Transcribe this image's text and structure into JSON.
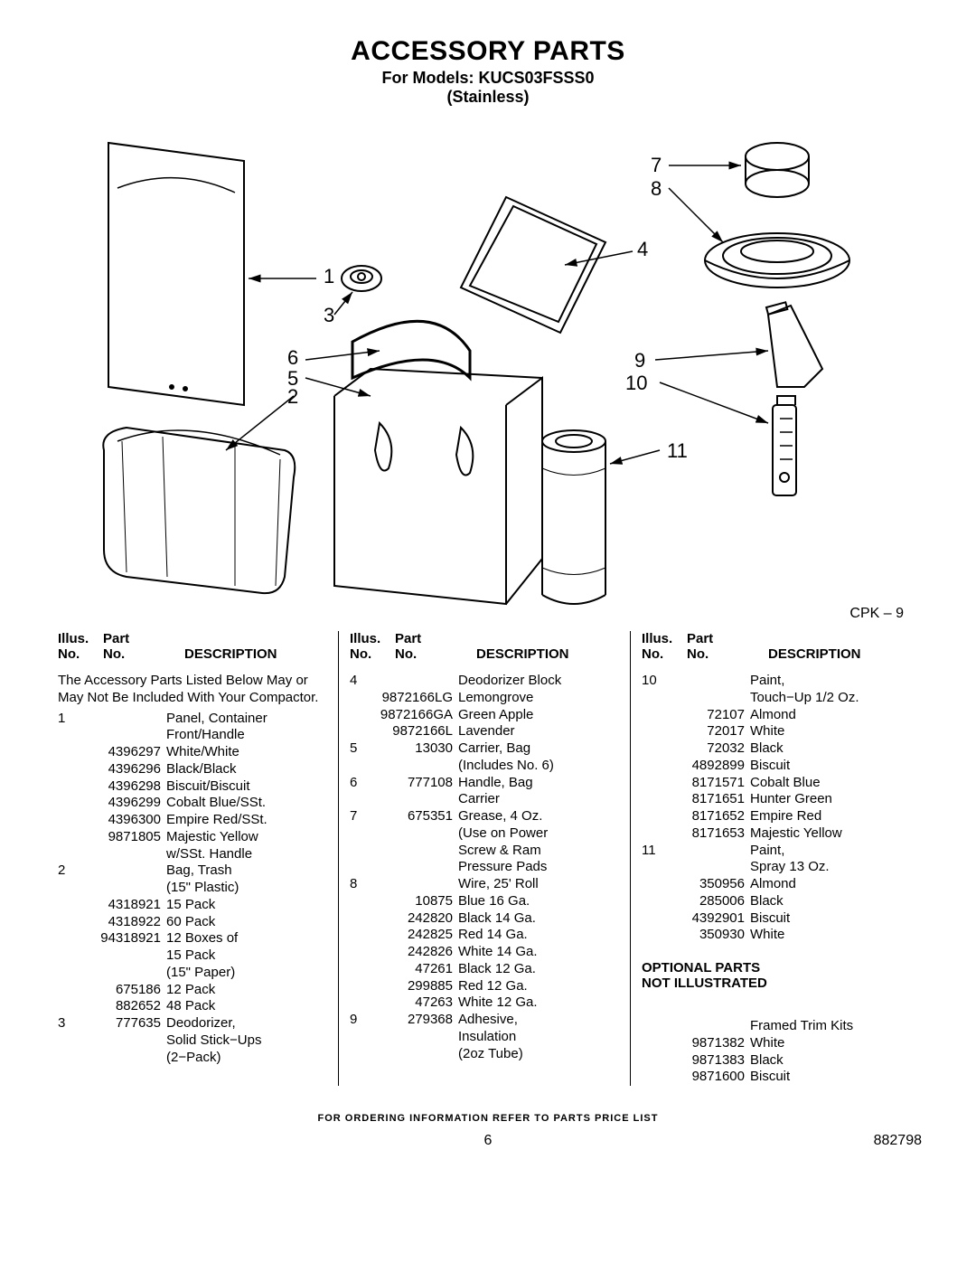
{
  "title": "ACCESSORY PARTS",
  "subtitle_line1": "For Models: KUCS03FSSS0",
  "subtitle_line2": "(Stainless)",
  "cpk_label": "CPK – 9",
  "callouts": {
    "n1": "1",
    "n2": "2",
    "n3": "3",
    "n4": "4",
    "n5": "5",
    "n6": "6",
    "n7": "7",
    "n8": "8",
    "n9": "9",
    "n10": "10",
    "n11": "11"
  },
  "col_header": {
    "illus": "Illus.",
    "part": "Part",
    "no": "No.",
    "no2": "No.",
    "desc": "DESCRIPTION"
  },
  "intro_text": "The Accessory Parts Listed Below May or May Not Be Included With Your Compactor.",
  "col1": [
    {
      "illus": "1",
      "part": "",
      "desc": "Panel, Container"
    },
    {
      "illus": "",
      "part": "",
      "desc": "Front/Handle"
    },
    {
      "illus": "",
      "part": "4396297",
      "desc": "White/White"
    },
    {
      "illus": "",
      "part": "4396296",
      "desc": "Black/Black"
    },
    {
      "illus": "",
      "part": "4396298",
      "desc": "Biscuit/Biscuit"
    },
    {
      "illus": "",
      "part": "4396299",
      "desc": "Cobalt Blue/SSt."
    },
    {
      "illus": "",
      "part": "4396300",
      "desc": "Empire Red/SSt."
    },
    {
      "illus": "",
      "part": "9871805",
      "desc": "Majestic Yellow"
    },
    {
      "illus": "",
      "part": "",
      "desc": " w/SSt. Handle"
    },
    {
      "illus": "2",
      "part": "",
      "desc": "Bag, Trash"
    },
    {
      "illus": "",
      "part": "",
      "desc": "(15\" Plastic)"
    },
    {
      "illus": "",
      "part": "4318921",
      "desc": "15 Pack"
    },
    {
      "illus": "",
      "part": "4318922",
      "desc": "60 Pack"
    },
    {
      "illus": "",
      "part": "94318921",
      "desc": "12 Boxes of"
    },
    {
      "illus": "",
      "part": "",
      "desc": "15 Pack"
    },
    {
      "illus": "",
      "part": "",
      "desc": "(15\" Paper)"
    },
    {
      "illus": "",
      "part": "675186",
      "desc": "12 Pack"
    },
    {
      "illus": "",
      "part": "882652",
      "desc": "48 Pack"
    },
    {
      "illus": "3",
      "part": "777635",
      "desc": "Deodorizer,"
    },
    {
      "illus": "",
      "part": "",
      "desc": "Solid Stick−Ups"
    },
    {
      "illus": "",
      "part": "",
      "desc": "(2−Pack)"
    }
  ],
  "col2": [
    {
      "illus": "4",
      "part": "",
      "desc": "Deodorizer Block"
    },
    {
      "illus": "",
      "part": "9872166LG",
      "desc": "Lemongrove"
    },
    {
      "illus": "",
      "part": "9872166GA",
      "desc": "Green Apple"
    },
    {
      "illus": "",
      "part": "9872166L",
      "desc": "Lavender"
    },
    {
      "illus": "5",
      "part": "13030",
      "desc": "Carrier, Bag"
    },
    {
      "illus": "",
      "part": "",
      "desc": "(Includes No. 6)"
    },
    {
      "illus": "6",
      "part": "777108",
      "desc": "Handle, Bag"
    },
    {
      "illus": "",
      "part": "",
      "desc": "Carrier"
    },
    {
      "illus": "7",
      "part": "675351",
      "desc": "Grease, 4 Oz."
    },
    {
      "illus": "",
      "part": "",
      "desc": "(Use on Power"
    },
    {
      "illus": "",
      "part": "",
      "desc": "Screw & Ram"
    },
    {
      "illus": "",
      "part": "",
      "desc": "Pressure Pads"
    },
    {
      "illus": "8",
      "part": "",
      "desc": "Wire, 25' Roll"
    },
    {
      "illus": "",
      "part": "10875",
      "desc": "Blue 16 Ga."
    },
    {
      "illus": "",
      "part": "242820",
      "desc": "Black 14 Ga."
    },
    {
      "illus": "",
      "part": "242825",
      "desc": "Red 14 Ga."
    },
    {
      "illus": "",
      "part": "242826",
      "desc": "White 14 Ga."
    },
    {
      "illus": "",
      "part": "47261",
      "desc": "Black 12 Ga."
    },
    {
      "illus": "",
      "part": "299885",
      "desc": "Red 12 Ga."
    },
    {
      "illus": "",
      "part": "47263",
      "desc": "White 12 Ga."
    },
    {
      "illus": "9",
      "part": "279368",
      "desc": "Adhesive,"
    },
    {
      "illus": "",
      "part": "",
      "desc": "Insulation"
    },
    {
      "illus": "",
      "part": "",
      "desc": "(2oz Tube)"
    }
  ],
  "col3": [
    {
      "illus": "10",
      "part": "",
      "desc": "Paint,"
    },
    {
      "illus": "",
      "part": "",
      "desc": "Touch−Up 1/2 Oz."
    },
    {
      "illus": "",
      "part": "72107",
      "desc": "Almond"
    },
    {
      "illus": "",
      "part": "72017",
      "desc": "White"
    },
    {
      "illus": "",
      "part": "72032",
      "desc": "Black"
    },
    {
      "illus": "",
      "part": "4892899",
      "desc": "Biscuit"
    },
    {
      "illus": "",
      "part": "8171571",
      "desc": "Cobalt Blue"
    },
    {
      "illus": "",
      "part": "8171651",
      "desc": "Hunter Green"
    },
    {
      "illus": "",
      "part": "8171652",
      "desc": "Empire Red"
    },
    {
      "illus": "",
      "part": "8171653",
      "desc": "Majestic Yellow"
    },
    {
      "illus": "11",
      "part": "",
      "desc": "Paint,"
    },
    {
      "illus": "",
      "part": "",
      "desc": "Spray 13 Oz."
    },
    {
      "illus": "",
      "part": "350956",
      "desc": "Almond"
    },
    {
      "illus": "",
      "part": "285006",
      "desc": "Black"
    },
    {
      "illus": "",
      "part": "4392901",
      "desc": "Biscuit"
    },
    {
      "illus": "",
      "part": "350930",
      "desc": "White"
    }
  ],
  "optional_header1": "OPTIONAL PARTS",
  "optional_header2": "NOT ILLUSTRATED",
  "optional": [
    {
      "illus": "",
      "part": "",
      "desc": "Framed Trim Kits"
    },
    {
      "illus": "",
      "part": "9871382",
      "desc": "White"
    },
    {
      "illus": "",
      "part": "9871383",
      "desc": "Black"
    },
    {
      "illus": "",
      "part": "9871600",
      "desc": "Biscuit"
    }
  ],
  "footer_note": "FOR ORDERING INFORMATION REFER TO PARTS PRICE LIST",
  "page_number": "6",
  "doc_number": "882798"
}
